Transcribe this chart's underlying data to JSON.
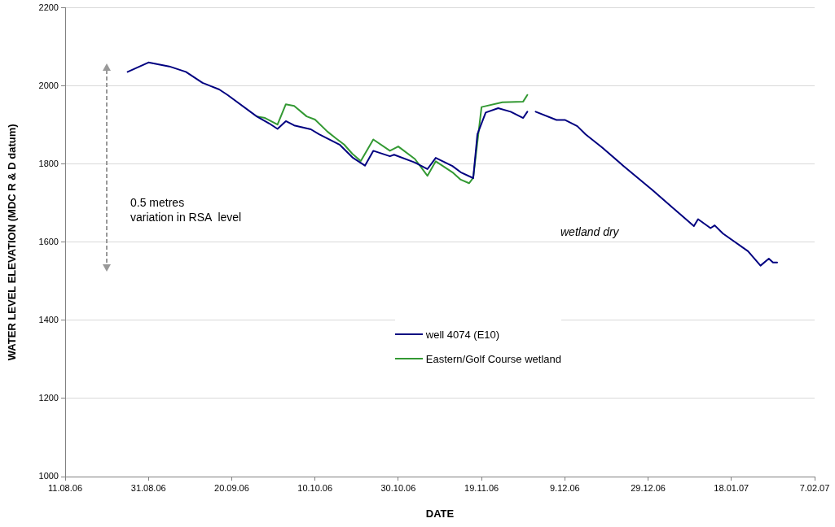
{
  "chart_data": {
    "type": "line",
    "xlabel": "DATE",
    "ylabel": "WATER LEVEL ELEVATION (MDC R & D datum)",
    "xlim": [
      "2006-08-11",
      "2007-02-07"
    ],
    "xticks": [
      {
        "value": "2006-08-11",
        "label": "11.08.06"
      },
      {
        "value": "2006-08-31",
        "label": "31.08.06"
      },
      {
        "value": "2006-09-20",
        "label": "20.09.06"
      },
      {
        "value": "2006-10-10",
        "label": "10.10.06"
      },
      {
        "value": "2006-10-30",
        "label": "30.10.06"
      },
      {
        "value": "2006-11-19",
        "label": "19.11.06"
      },
      {
        "value": "2006-12-09",
        "label": "9.12.06"
      },
      {
        "value": "2006-12-29",
        "label": "29.12.06"
      },
      {
        "value": "2007-01-18",
        "label": "18.01.07"
      },
      {
        "value": "2007-02-07",
        "label": "7.02.07"
      }
    ],
    "ylim": [
      1000,
      2200
    ],
    "yticks": [
      1000,
      1200,
      1400,
      1600,
      1800,
      2000,
      2200
    ],
    "grid": "y",
    "legend": "bottom",
    "marker": "none",
    "line_style": "solid",
    "annotations": [
      "0.5 metres\nvariation in RSA  level",
      "wetland dry"
    ],
    "series": [
      {
        "name": "well 4074 (E10)",
        "color": "#000080",
        "x": [
          "2006-08-26",
          "2006-08-31",
          "2006-09-05",
          "2006-09-09",
          "2006-09-13",
          "2006-09-17",
          "2006-09-19",
          "2006-09-26",
          "2006-09-29",
          "2006-10-01",
          "2006-10-03",
          "2006-10-05",
          "2006-10-09",
          "2006-10-11",
          "2006-10-16",
          "2006-10-19",
          "2006-10-22",
          "2006-10-24",
          "2006-10-28",
          "2006-10-29",
          "2006-11-03",
          "2006-11-06",
          "2006-11-08",
          "2006-11-12",
          "2006-11-14",
          "2006-11-17",
          "2006-11-18",
          "2006-11-20",
          "2006-11-23",
          "2006-11-26",
          "2006-11-29",
          "2006-11-30",
          "2006-12-01",
          "2006-12-02",
          "2006-12-07",
          "2006-12-09",
          "2006-12-12",
          "2006-12-14",
          "2006-12-18",
          "2006-12-23",
          "2006-12-30",
          "2007-01-05",
          "2007-01-09",
          "2007-01-10",
          "2007-01-13",
          "2007-01-14",
          "2007-01-16",
          "2007-01-22",
          "2007-01-25",
          "2007-01-27",
          "2007-01-28",
          "2007-01-29"
        ],
        "values": [
          2036,
          2060,
          2050,
          2036,
          2008,
          1991,
          1977,
          1922,
          1904,
          1890,
          1910,
          1899,
          1889,
          1876,
          1849,
          1817,
          1796,
          1834,
          1820,
          1824,
          1804,
          1787,
          1816,
          1795,
          1779,
          1764,
          1876,
          1932,
          1943,
          1934,
          1918,
          1934,
          null,
          1934,
          1913,
          1913,
          1897,
          1876,
          1842,
          1796,
          1734,
          1678,
          1641,
          1659,
          1636,
          1643,
          1622,
          1577,
          1540,
          1558,
          1548,
          1548
        ]
      },
      {
        "name": "Eastern/Golf Course wetland",
        "color": "#339933",
        "x": [
          "2006-09-26",
          "2006-09-28",
          "2006-10-01",
          "2006-10-03",
          "2006-10-05",
          "2006-10-08",
          "2006-10-10",
          "2006-10-13",
          "2006-10-15",
          "2006-10-17",
          "2006-10-19",
          "2006-10-21",
          "2006-10-24",
          "2006-10-28",
          "2006-10-30",
          "2006-11-03",
          "2006-11-06",
          "2006-11-08",
          "2006-11-12",
          "2006-11-14",
          "2006-11-16",
          "2006-11-17",
          "2006-11-19",
          "2006-11-24",
          "2006-11-29",
          "2006-11-30"
        ],
        "values": [
          1922,
          1918,
          1901,
          1953,
          1949,
          1922,
          1914,
          1883,
          1866,
          1850,
          1826,
          1808,
          1863,
          1834,
          1845,
          1813,
          1770,
          1807,
          1779,
          1760,
          1751,
          1765,
          1946,
          1958,
          1960,
          1977
        ]
      }
    ]
  }
}
